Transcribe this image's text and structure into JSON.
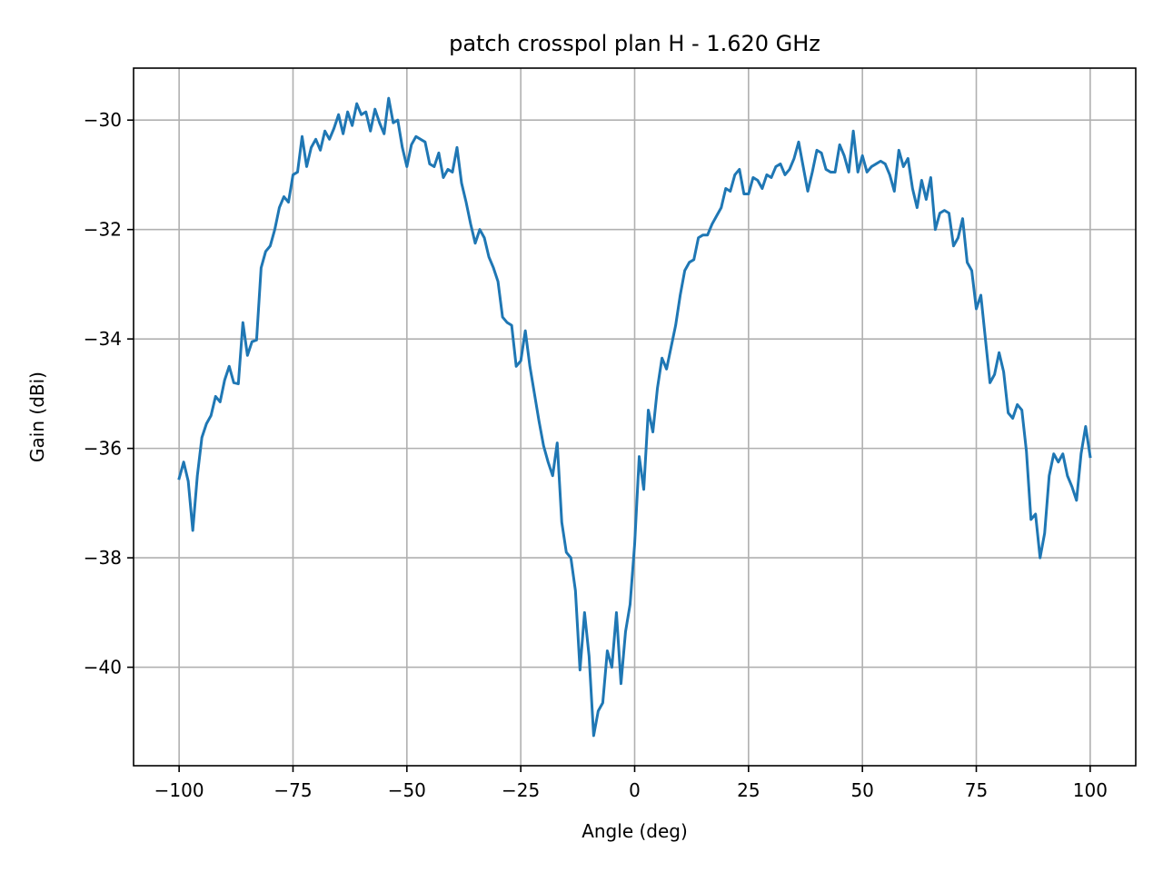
{
  "chart_data": {
    "type": "line",
    "title": "patch crosspol plan H - 1.620 GHz",
    "xlabel": "Angle (deg)",
    "ylabel": "Gain (dBi)",
    "xlim": [
      -110,
      110
    ],
    "ylim": [
      -41.8,
      -29.05
    ],
    "xticks": [
      -100,
      -75,
      -50,
      -25,
      0,
      25,
      50,
      75,
      100
    ],
    "xtick_labels": [
      "−100",
      "−75",
      "−50",
      "−25",
      "0",
      "25",
      "50",
      "75",
      "100"
    ],
    "yticks": [
      -30,
      -32,
      -34,
      -36,
      -38,
      -40
    ],
    "ytick_labels": [
      "−30",
      "−32",
      "−34",
      "−36",
      "−38",
      "−40"
    ],
    "grid": true,
    "series": [
      {
        "color": "#1f77b4",
        "x": [
          -100,
          -99,
          -98,
          -97,
          -96,
          -95,
          -94,
          -93,
          -92,
          -91,
          -90,
          -89,
          -88,
          -87,
          -86,
          -85,
          -84,
          -83,
          -82,
          -81,
          -80,
          -79,
          -78,
          -77,
          -76,
          -75,
          -74,
          -73,
          -72,
          -71,
          -70,
          -69,
          -68,
          -67,
          -66,
          -65,
          -64,
          -63,
          -62,
          -61,
          -60,
          -59,
          -58,
          -57,
          -56,
          -55,
          -54,
          -53,
          -52,
          -51,
          -50,
          -49,
          -48,
          -47,
          -46,
          -45,
          -44,
          -43,
          -42,
          -41,
          -40,
          -39,
          -38,
          -37,
          -36,
          -35,
          -34,
          -33,
          -32,
          -31,
          -30,
          -29,
          -28,
          -27,
          -26,
          -25,
          -24,
          -23,
          -22,
          -21,
          -20,
          -19,
          -18,
          -17,
          -16,
          -15,
          -14,
          -13,
          -12,
          -11,
          -10,
          -9,
          -8,
          -7,
          -6,
          -5,
          -4,
          -3,
          -2,
          -1,
          0,
          1,
          2,
          3,
          4,
          5,
          6,
          7,
          8,
          9,
          10,
          11,
          12,
          13,
          14,
          15,
          16,
          17,
          18,
          19,
          20,
          21,
          22,
          23,
          24,
          25,
          26,
          27,
          28,
          29,
          30,
          31,
          32,
          33,
          34,
          35,
          36,
          37,
          38,
          39,
          40,
          41,
          42,
          43,
          44,
          45,
          46,
          47,
          48,
          49,
          50,
          51,
          52,
          53,
          54,
          55,
          56,
          57,
          58,
          59,
          60,
          61,
          62,
          63,
          64,
          65,
          66,
          67,
          68,
          69,
          70,
          71,
          72,
          73,
          74,
          75,
          76,
          77,
          78,
          79,
          80,
          81,
          82,
          83,
          84,
          85,
          86,
          87,
          88,
          89,
          90,
          91,
          92,
          93,
          94,
          95,
          96,
          97,
          98,
          99,
          100
        ],
        "y": [
          -36.55,
          -36.25,
          -36.6,
          -37.5,
          -36.5,
          -35.8,
          -35.55,
          -35.4,
          -35.05,
          -35.15,
          -34.75,
          -34.5,
          -34.8,
          -34.82,
          -33.7,
          -34.3,
          -34.05,
          -34.02,
          -32.7,
          -32.4,
          -32.3,
          -32.0,
          -31.6,
          -31.4,
          -31.5,
          -31.0,
          -30.95,
          -30.3,
          -30.85,
          -30.5,
          -30.35,
          -30.55,
          -30.2,
          -30.35,
          -30.15,
          -29.9,
          -30.25,
          -29.85,
          -30.1,
          -29.7,
          -29.9,
          -29.85,
          -30.2,
          -29.8,
          -30.05,
          -30.25,
          -29.6,
          -30.05,
          -30.0,
          -30.5,
          -30.85,
          -30.45,
          -30.3,
          -30.35,
          -30.4,
          -30.8,
          -30.85,
          -30.6,
          -31.05,
          -30.9,
          -30.95,
          -30.5,
          -31.15,
          -31.5,
          -31.9,
          -32.25,
          -32.0,
          -32.15,
          -32.5,
          -32.7,
          -32.95,
          -33.6,
          -33.7,
          -33.75,
          -34.5,
          -34.4,
          -33.85,
          -34.5,
          -35.0,
          -35.5,
          -35.95,
          -36.25,
          -36.5,
          -35.9,
          -37.35,
          -37.9,
          -38.0,
          -38.6,
          -40.05,
          -39.0,
          -39.8,
          -41.25,
          -40.8,
          -40.65,
          -39.7,
          -40.0,
          -39.0,
          -40.3,
          -39.35,
          -38.85,
          -37.75,
          -36.15,
          -36.75,
          -35.3,
          -35.7,
          -34.9,
          -34.35,
          -34.55,
          -34.15,
          -33.75,
          -33.2,
          -32.75,
          -32.6,
          -32.55,
          -32.15,
          -32.1,
          -32.1,
          -31.9,
          -31.75,
          -31.6,
          -31.25,
          -31.3,
          -31.0,
          -30.9,
          -31.35,
          -31.35,
          -31.05,
          -31.1,
          -31.25,
          -31.0,
          -31.05,
          -30.85,
          -30.8,
          -31.0,
          -30.9,
          -30.7,
          -30.4,
          -30.85,
          -31.3,
          -30.95,
          -30.55,
          -30.6,
          -30.9,
          -30.95,
          -30.95,
          -30.45,
          -30.65,
          -30.95,
          -30.2,
          -30.95,
          -30.65,
          -30.95,
          -30.85,
          -30.8,
          -30.75,
          -30.8,
          -31.0,
          -31.3,
          -30.55,
          -30.85,
          -30.7,
          -31.25,
          -31.6,
          -31.1,
          -31.45,
          -31.05,
          -32.0,
          -31.7,
          -31.65,
          -31.7,
          -32.3,
          -32.15,
          -31.8,
          -32.6,
          -32.75,
          -33.45,
          -33.2,
          -34.0,
          -34.8,
          -34.65,
          -34.25,
          -34.6,
          -35.35,
          -35.45,
          -35.2,
          -35.3,
          -36.05,
          -37.3,
          -37.2,
          -38.0,
          -37.55,
          -36.5,
          -36.1,
          -36.25,
          -36.1,
          -36.5,
          -36.7,
          -36.95,
          -36.1,
          -35.6,
          -36.15
        ]
      }
    ]
  }
}
